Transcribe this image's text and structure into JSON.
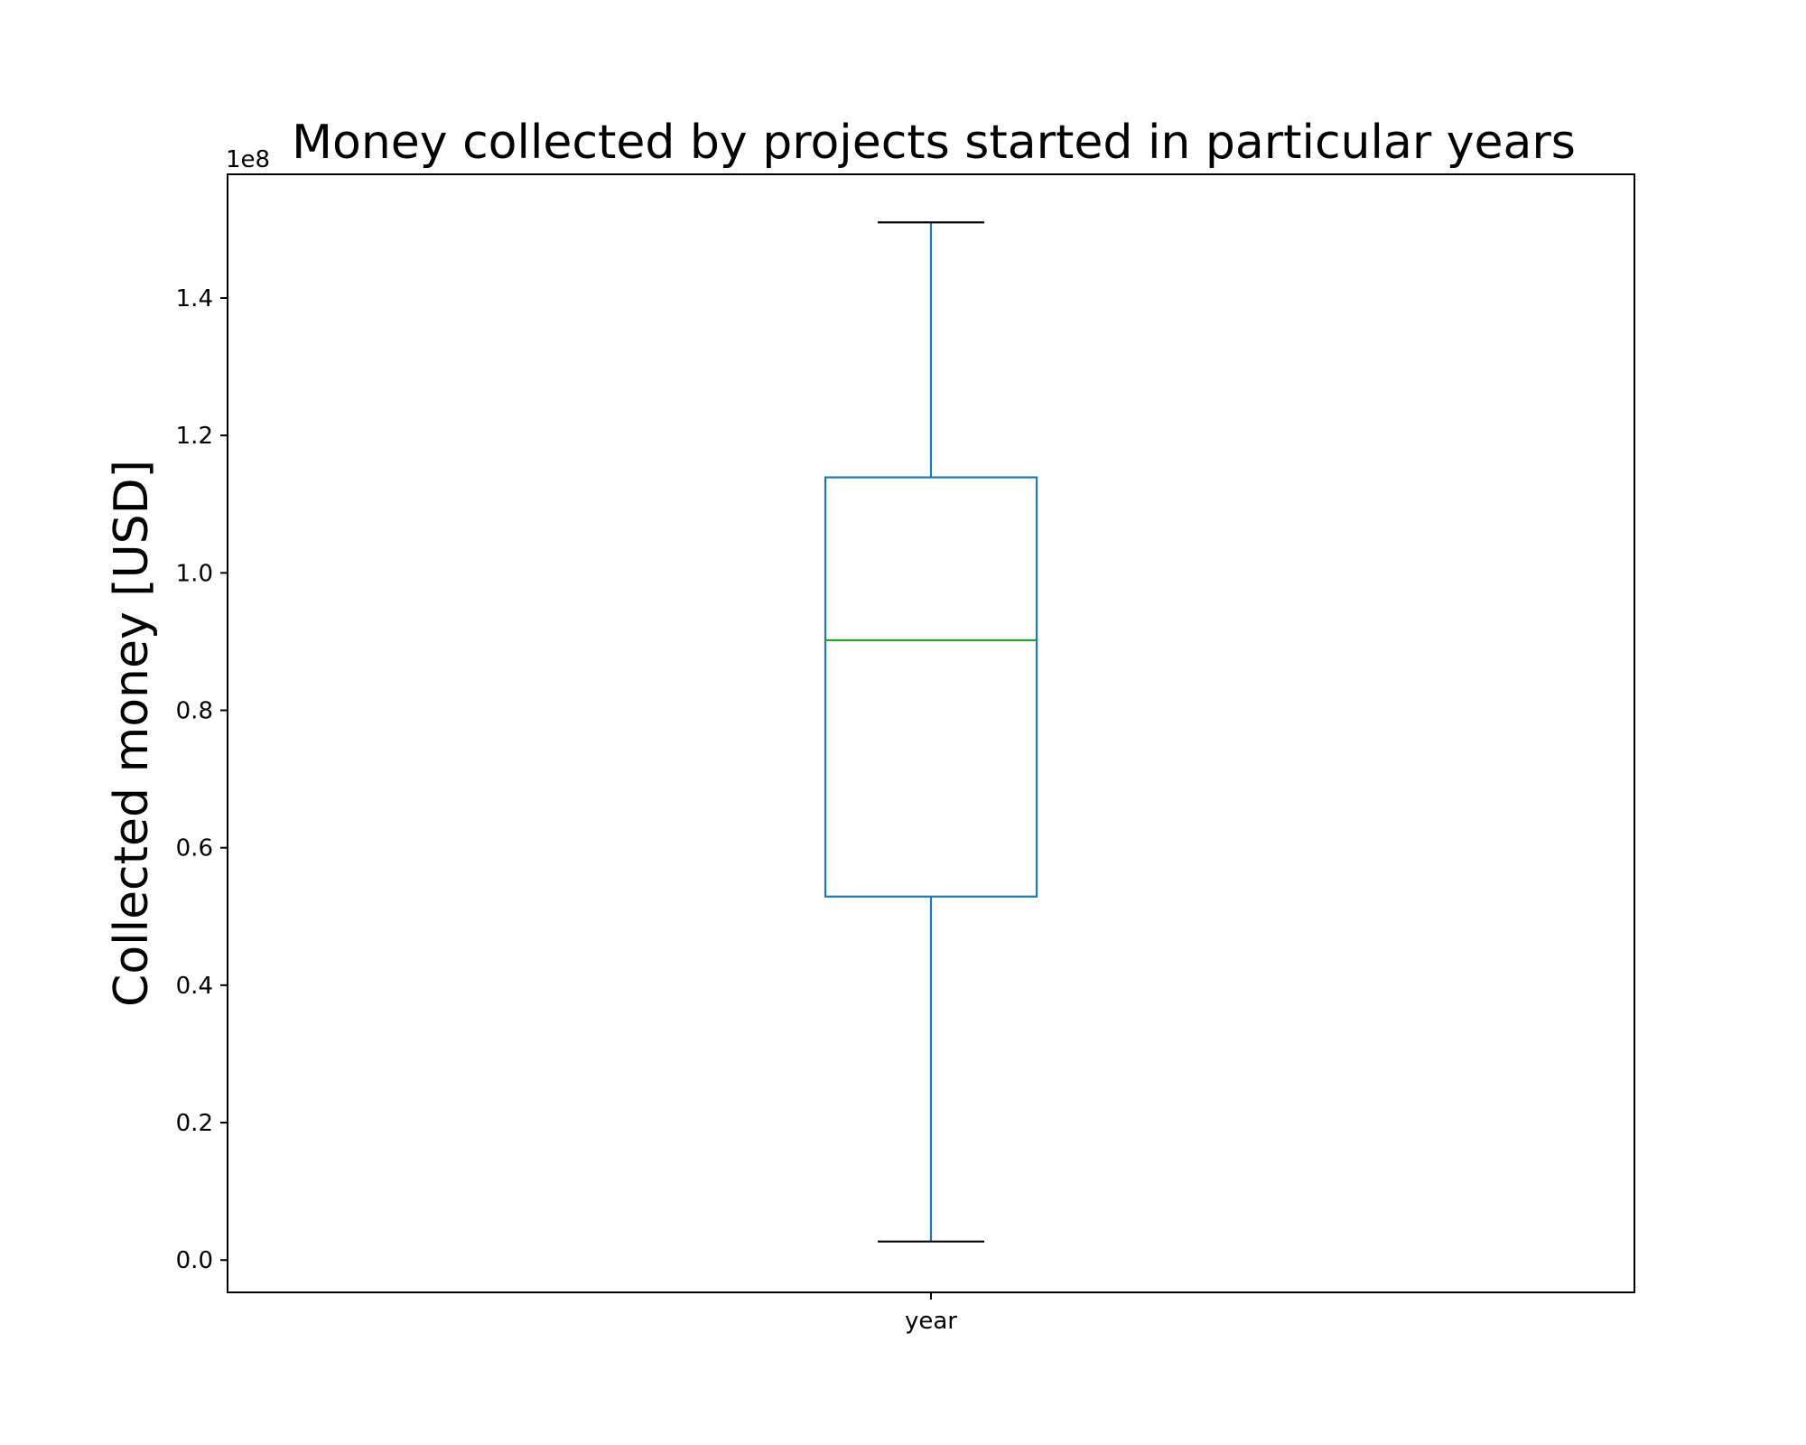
{
  "chart_data": {
    "type": "box",
    "title": "Money collected by projects started in particular years",
    "ylabel": "Collected money [USD]",
    "xlabel": "",
    "y_offset_label": "1e8",
    "ylim": [
      -0.047,
      1.58
    ],
    "yticks": [
      0.0,
      0.2,
      0.4,
      0.6,
      0.8,
      1.0,
      1.2,
      1.4
    ],
    "ytick_labels": [
      "0.0",
      "0.2",
      "0.4",
      "0.6",
      "0.8",
      "1.0",
      "1.2",
      "1.4"
    ],
    "categories": [
      "year"
    ],
    "series": [
      {
        "category": "year",
        "whisker_low": 0.027,
        "q1": 0.529,
        "median": 0.902,
        "q3": 1.139,
        "whisker_high": 1.51
      }
    ],
    "grid": false,
    "colors": {
      "box": "#1f77b4",
      "median": "#2ca02c",
      "caps": "#000000",
      "axes": "#000000"
    }
  }
}
